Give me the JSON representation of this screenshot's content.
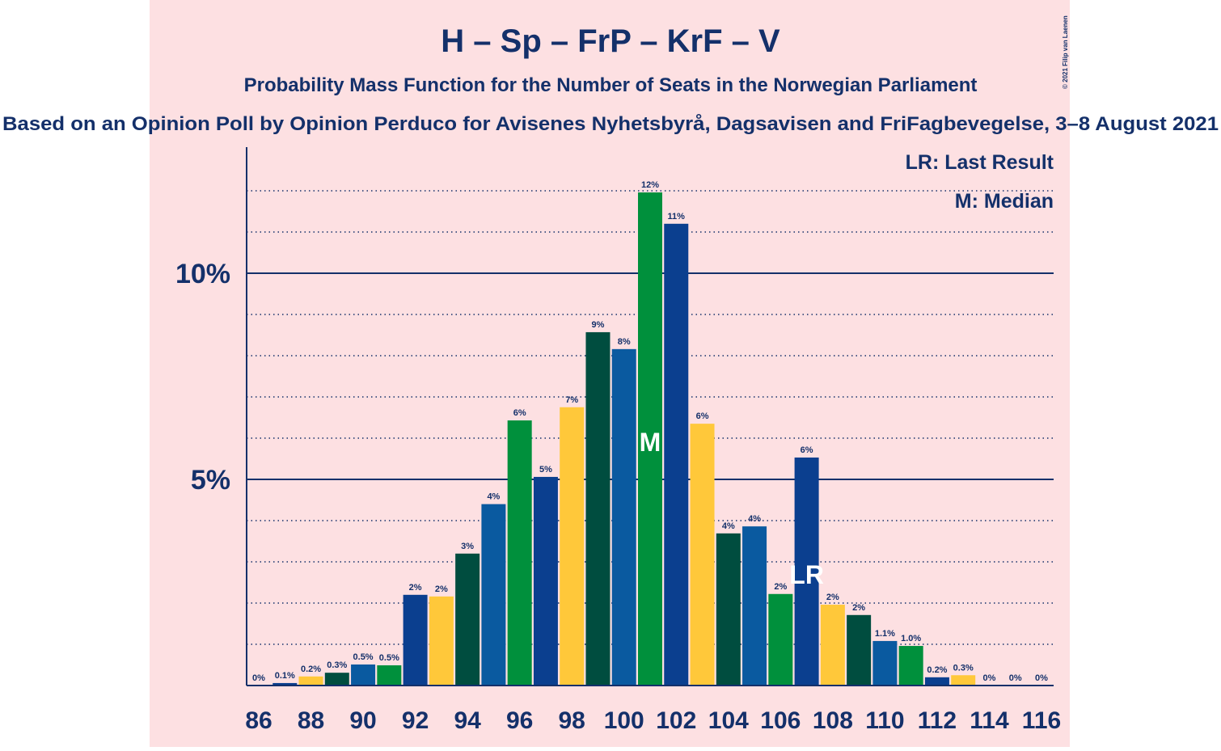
{
  "chart_data": {
    "type": "bar",
    "title": "H – Sp – FrP – KrF – V",
    "subtitle": "Probability Mass Function for the Number of Seats in the Norwegian Parliament",
    "subtitle2": "Based on an Opinion Poll by Opinion Perduco for Avisenes Nyhetsbyrå, Dagsavisen and FriFagbevegelse, 3–8 August 2021",
    "copyright": "© 2021 Filip van Laenen",
    "legend": [
      "LR: Last Result",
      "M: Median"
    ],
    "categories": [
      86,
      null,
      88,
      null,
      90,
      null,
      92,
      null,
      94,
      null,
      96,
      null,
      98,
      null,
      100,
      null,
      102,
      null,
      104,
      null,
      106,
      null,
      108,
      null,
      110,
      null,
      112,
      null,
      114,
      null,
      116
    ],
    "values": [
      0,
      0.06,
      0.22,
      0.31,
      0.51,
      0.49,
      2.2,
      2.16,
      3.2,
      4.4,
      6.43,
      5.06,
      6.75,
      8.57,
      8.16,
      11.96,
      11.2,
      6.35,
      3.69,
      3.86,
      2.22,
      5.53,
      1.96,
      1.71,
      1.08,
      0.96,
      0.2,
      0.25,
      0,
      0,
      0
    ],
    "value_labels": [
      "0%",
      "0.1%",
      "0.2%",
      "0.3%",
      "0.5%",
      "0.5%",
      "2%",
      "2%",
      "3%",
      "4%",
      "6%",
      "5%",
      "7%",
      "9%",
      "8%",
      "12%",
      "11%",
      "6%",
      "4%",
      "4%",
      "2%",
      "6%",
      "2%",
      "2%",
      "1.1%",
      "1.0%",
      "0.2%",
      "0.3%",
      "0%",
      "0%",
      "0%"
    ],
    "colors": [
      "#00903c",
      "#0b3f8f",
      "#ffc83a",
      "#004d3f",
      "#0a5aa0",
      "#00903c",
      "#0b3f8f",
      "#ffc83a",
      "#004d3f",
      "#0a5aa0",
      "#00903c",
      "#0b3f8f",
      "#ffc83a",
      "#004d3f",
      "#0a5aa0",
      "#00903c",
      "#0b3f8f",
      "#ffc83a",
      "#004d3f",
      "#0a5aa0",
      "#00903c",
      "#0b3f8f",
      "#ffc83a",
      "#004d3f",
      "#0a5aa0",
      "#00903c",
      "#0b3f8f",
      "#ffc83a",
      "#004d3f",
      "#0a5aa0",
      "#00903c"
    ],
    "median_index": 15,
    "median_label": "M",
    "last_result_index": 21,
    "last_result_label": "LR",
    "ylim": [
      0,
      13
    ],
    "yticks": [
      {
        "value": 5,
        "label": "5%"
      },
      {
        "value": 10,
        "label": "10%"
      }
    ],
    "minor_yticks": [
      1,
      2,
      3,
      4,
      6,
      7,
      8,
      9,
      11,
      12
    ],
    "grid": true
  }
}
